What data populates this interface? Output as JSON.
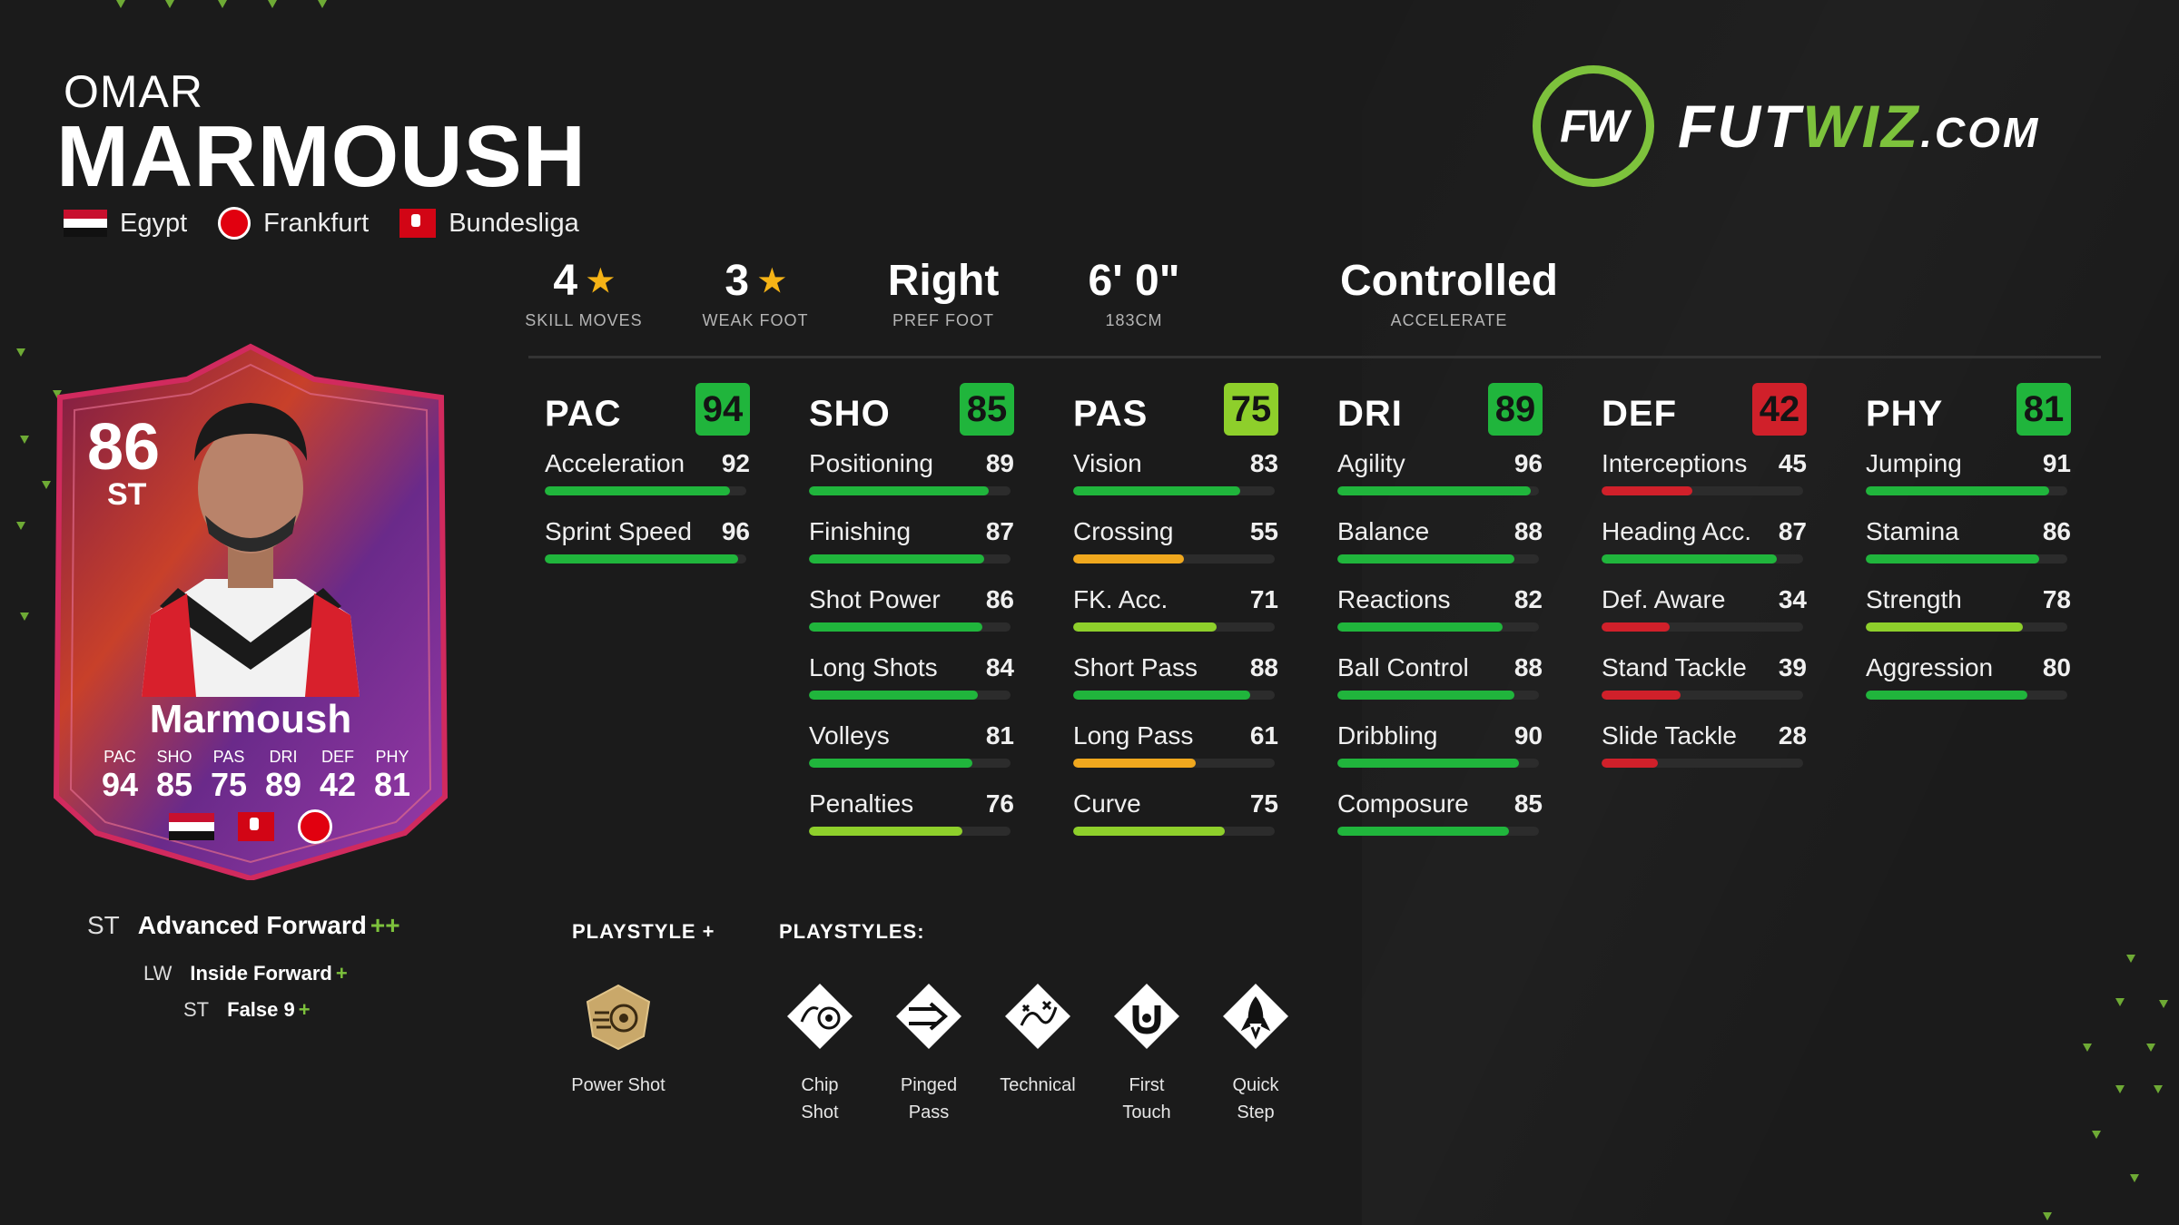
{
  "player": {
    "first_name": "OMAR",
    "last_name": "MARMOUSH",
    "nation": "Egypt",
    "club": "Frankfurt",
    "league": "Bundesliga"
  },
  "logo": {
    "mark": "FW",
    "text_a": "FUT",
    "text_b": "WIZ",
    "text_c": ".COM"
  },
  "info": {
    "skill_moves": {
      "value": "4",
      "label": "SKILL MOVES"
    },
    "weak_foot": {
      "value": "3",
      "label": "WEAK FOOT"
    },
    "pref_foot": {
      "value": "Right",
      "label": "PREF FOOT"
    },
    "height": {
      "value": "6' 0\"",
      "label": "183CM"
    },
    "accelerate": {
      "value": "Controlled",
      "label": "ACCELERATE"
    },
    "star": "★"
  },
  "colors": {
    "dark_green": "#20b53c",
    "light_green": "#8ecf2b",
    "orange": "#f0a81e",
    "red": "#d0202a",
    "logo_green": "#7dc23c"
  },
  "columns": [
    {
      "name": "PAC",
      "value": "94",
      "color": "#20b53c",
      "stats": [
        {
          "label": "Acceleration",
          "value": "92",
          "color": "#20b53c"
        },
        {
          "label": "Sprint Speed",
          "value": "96",
          "color": "#20b53c"
        }
      ]
    },
    {
      "name": "SHO",
      "value": "85",
      "color": "#20b53c",
      "stats": [
        {
          "label": "Positioning",
          "value": "89",
          "color": "#20b53c"
        },
        {
          "label": "Finishing",
          "value": "87",
          "color": "#20b53c"
        },
        {
          "label": "Shot Power",
          "value": "86",
          "color": "#20b53c"
        },
        {
          "label": "Long Shots",
          "value": "84",
          "color": "#20b53c"
        },
        {
          "label": "Volleys",
          "value": "81",
          "color": "#20b53c"
        },
        {
          "label": "Penalties",
          "value": "76",
          "color": "#8ecf2b"
        }
      ]
    },
    {
      "name": "PAS",
      "value": "75",
      "color": "#8ecf2b",
      "stats": [
        {
          "label": "Vision",
          "value": "83",
          "color": "#20b53c"
        },
        {
          "label": "Crossing",
          "value": "55",
          "color": "#f0a81e"
        },
        {
          "label": "FK. Acc.",
          "value": "71",
          "color": "#8ecf2b"
        },
        {
          "label": "Short Pass",
          "value": "88",
          "color": "#20b53c"
        },
        {
          "label": "Long Pass",
          "value": "61",
          "color": "#f0a81e"
        },
        {
          "label": "Curve",
          "value": "75",
          "color": "#8ecf2b"
        }
      ]
    },
    {
      "name": "DRI",
      "value": "89",
      "color": "#20b53c",
      "stats": [
        {
          "label": "Agility",
          "value": "96",
          "color": "#20b53c"
        },
        {
          "label": "Balance",
          "value": "88",
          "color": "#20b53c"
        },
        {
          "label": "Reactions",
          "value": "82",
          "color": "#20b53c"
        },
        {
          "label": "Ball Control",
          "value": "88",
          "color": "#20b53c"
        },
        {
          "label": "Dribbling",
          "value": "90",
          "color": "#20b53c"
        },
        {
          "label": "Composure",
          "value": "85",
          "color": "#20b53c"
        }
      ]
    },
    {
      "name": "DEF",
      "value": "42",
      "color": "#d0202a",
      "stats": [
        {
          "label": "Interceptions",
          "value": "45",
          "color": "#d0202a"
        },
        {
          "label": "Heading Acc.",
          "value": "87",
          "color": "#20b53c"
        },
        {
          "label": "Def. Aware",
          "value": "34",
          "color": "#d0202a"
        },
        {
          "label": "Stand Tackle",
          "value": "39",
          "color": "#d0202a"
        },
        {
          "label": "Slide Tackle",
          "value": "28",
          "color": "#d0202a"
        }
      ]
    },
    {
      "name": "PHY",
      "value": "81",
      "color": "#20b53c",
      "stats": [
        {
          "label": "Jumping",
          "value": "91",
          "color": "#20b53c"
        },
        {
          "label": "Stamina",
          "value": "86",
          "color": "#20b53c"
        },
        {
          "label": "Strength",
          "value": "78",
          "color": "#8ecf2b"
        },
        {
          "label": "Aggression",
          "value": "80",
          "color": "#20b53c"
        }
      ]
    }
  ],
  "card": {
    "rating": "86",
    "position": "ST",
    "name": "Marmoush",
    "labels": [
      "PAC",
      "SHO",
      "PAS",
      "DRI",
      "DEF",
      "PHY"
    ],
    "values": [
      "94",
      "85",
      "75",
      "89",
      "42",
      "81"
    ]
  },
  "roles": {
    "main": {
      "pos": "ST",
      "name": "Advanced Forward",
      "plus": "++"
    },
    "sub": [
      {
        "pos": "LW",
        "name": "Inside Forward",
        "plus": "+"
      },
      {
        "pos": "ST",
        "name": "False 9",
        "plus": "+"
      }
    ]
  },
  "playstyle_plus": {
    "title": "PLAYSTYLE +",
    "items": [
      {
        "label": "Power Shot",
        "icon": "power-shot-icon"
      }
    ]
  },
  "playstyles": {
    "title": "PLAYSTYLES:",
    "items": [
      {
        "label_1": "Chip",
        "label_2": "Shot",
        "icon": "chip-shot-icon"
      },
      {
        "label_1": "Pinged",
        "label_2": "Pass",
        "icon": "pinged-pass-icon"
      },
      {
        "label_1": "Technical",
        "label_2": "",
        "icon": "technical-icon"
      },
      {
        "label_1": "First",
        "label_2": "Touch",
        "icon": "first-touch-icon"
      },
      {
        "label_1": "Quick",
        "label_2": "Step",
        "icon": "quick-step-icon"
      }
    ]
  }
}
